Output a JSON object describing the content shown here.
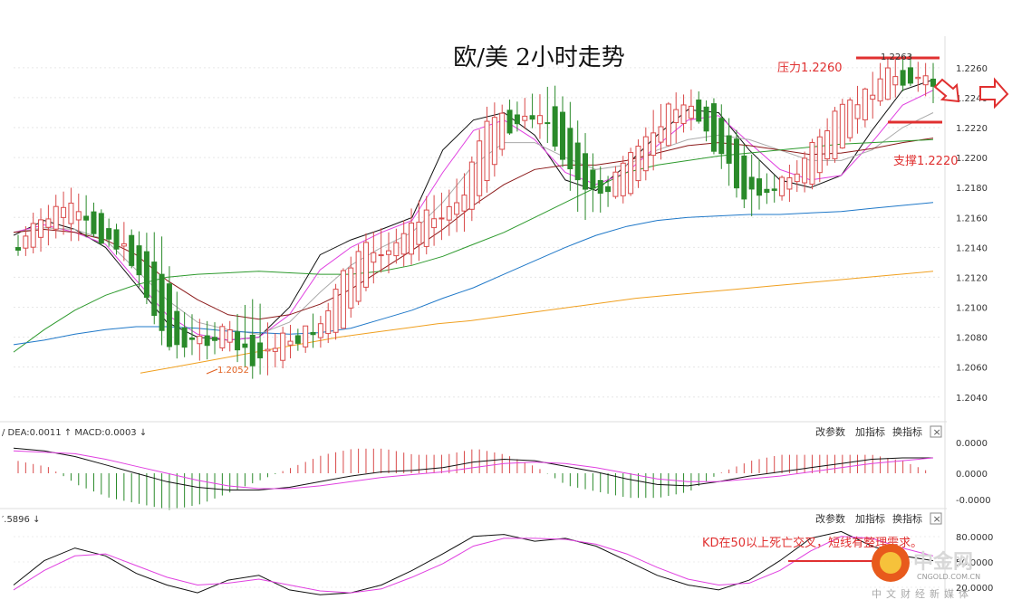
{
  "chart_data": {
    "type": "candlestick",
    "title": "欧/美 2小时走势",
    "main": {
      "y_ticks": [
        1.226,
        1.224,
        1.222,
        1.22,
        1.218,
        1.216,
        1.214,
        1.212,
        1.21,
        1.208,
        1.206,
        1.204
      ],
      "ylim": [
        1.2032,
        1.2272
      ],
      "candle_count": 122,
      "candles_ohlc_sampled": [
        [
          1.214,
          1.2145,
          1.2135,
          1.2138
        ],
        [
          1.2148,
          1.2165,
          1.2142,
          1.2158
        ],
        [
          1.216,
          1.2175,
          1.215,
          1.2168
        ],
        [
          1.2165,
          1.2172,
          1.215,
          1.2153
        ],
        [
          1.215,
          1.2155,
          1.214,
          1.2145
        ],
        [
          1.2142,
          1.2148,
          1.2125,
          1.213
        ],
        [
          1.2128,
          1.215,
          1.208,
          1.2085
        ],
        [
          1.2088,
          1.2095,
          1.2068,
          1.2072
        ],
        [
          1.2075,
          1.2085,
          1.207,
          1.208
        ],
        [
          1.208,
          1.2088,
          1.2075,
          1.2082
        ],
        [
          1.2082,
          1.2105,
          1.2058,
          1.206
        ],
        [
          1.2065,
          1.208,
          1.206,
          1.2078
        ],
        [
          1.2078,
          1.2085,
          1.2072,
          1.208
        ],
        [
          1.208,
          1.2095,
          1.2075,
          1.209
        ],
        [
          1.2092,
          1.213,
          1.209,
          1.2125
        ],
        [
          1.2125,
          1.2148,
          1.212,
          1.214
        ],
        [
          1.214,
          1.215,
          1.213,
          1.2135
        ],
        [
          1.2135,
          1.2168,
          1.2132,
          1.2162
        ],
        [
          1.216,
          1.217,
          1.215,
          1.2158
        ],
        [
          1.2158,
          1.2185,
          1.2155,
          1.218
        ],
        [
          1.2182,
          1.223,
          1.218,
          1.2228
        ],
        [
          1.2228,
          1.2235,
          1.2218,
          1.2222
        ],
        [
          1.2222,
          1.224,
          1.222,
          1.2232
        ],
        [
          1.223,
          1.2245,
          1.2205,
          1.221
        ],
        [
          1.2212,
          1.222,
          1.216,
          1.2175
        ],
        [
          1.2175,
          1.2185,
          1.2168,
          1.218
        ],
        [
          1.218,
          1.22,
          1.2178,
          1.2195
        ],
        [
          1.2195,
          1.2225,
          1.2192,
          1.222
        ],
        [
          1.222,
          1.224,
          1.2215,
          1.2235
        ],
        [
          1.2235,
          1.224,
          1.2225,
          1.2228
        ],
        [
          1.2228,
          1.2232,
          1.2195,
          1.22
        ],
        [
          1.2198,
          1.2205,
          1.2165,
          1.2172
        ],
        [
          1.2172,
          1.2185,
          1.217,
          1.2182
        ],
        [
          1.2182,
          1.219,
          1.2176,
          1.2185
        ],
        [
          1.2185,
          1.2215,
          1.2183,
          1.2212
        ],
        [
          1.221,
          1.2232,
          1.2208,
          1.2228
        ],
        [
          1.2228,
          1.2245,
          1.2225,
          1.224
        ],
        [
          1.224,
          1.2262,
          1.2238,
          1.2258
        ],
        [
          1.2258,
          1.2265,
          1.2248,
          1.2252
        ],
        [
          1.2252,
          1.226,
          1.2242,
          1.2248
        ]
      ],
      "moving_averages": {
        "black": [
          1.2148,
          1.2158,
          1.2152,
          1.214,
          1.2115,
          1.209,
          1.208,
          1.2078,
          1.208,
          1.21,
          1.2135,
          1.2145,
          1.2152,
          1.216,
          1.2205,
          1.2225,
          1.223,
          1.2215,
          1.2185,
          1.2178,
          1.2195,
          1.2215,
          1.2232,
          1.223,
          1.2205,
          1.2185,
          1.218,
          1.2188,
          1.2218,
          1.2245,
          1.2252
        ],
        "magenta": [
          1.215,
          1.2155,
          1.215,
          1.2142,
          1.2118,
          1.2095,
          1.2082,
          1.2078,
          1.208,
          1.2095,
          1.2125,
          1.214,
          1.215,
          1.2158,
          1.219,
          1.2218,
          1.2225,
          1.2212,
          1.219,
          1.2182,
          1.219,
          1.2208,
          1.2225,
          1.2228,
          1.221,
          1.2192,
          1.2185,
          1.2188,
          1.221,
          1.2235,
          1.2245
        ],
        "grey": [
          1.215,
          1.2153,
          1.2152,
          1.2145,
          1.2125,
          1.2105,
          1.209,
          1.2085,
          1.2082,
          1.209,
          1.211,
          1.2128,
          1.214,
          1.215,
          1.217,
          1.2195,
          1.221,
          1.221,
          1.22,
          1.2192,
          1.2195,
          1.2205,
          1.2212,
          1.2215,
          1.2212,
          1.2205,
          1.2198,
          1.2198,
          1.2205,
          1.222,
          1.223
        ],
        "brown": [
          1.215,
          1.2152,
          1.215,
          1.2145,
          1.2135,
          1.2118,
          1.2105,
          1.2095,
          1.2092,
          1.2095,
          1.2102,
          1.2112,
          1.2125,
          1.2138,
          1.2152,
          1.2168,
          1.2182,
          1.2192,
          1.2195,
          1.2195,
          1.2198,
          1.2203,
          1.2208,
          1.221,
          1.2208,
          1.2205,
          1.2202,
          1.2203,
          1.2206,
          1.221,
          1.2213
        ],
        "green": [
          1.207,
          1.2085,
          1.2098,
          1.2108,
          1.2115,
          1.212,
          1.2122,
          1.2123,
          1.2124,
          1.2123,
          1.2122,
          1.2122,
          1.2124,
          1.2128,
          1.2134,
          1.2142,
          1.215,
          1.216,
          1.217,
          1.218,
          1.219,
          1.2195,
          1.2198,
          1.2201,
          1.2203,
          1.2205,
          1.2207,
          1.2209,
          1.221,
          1.2211,
          1.2212
        ],
        "blue": [
          1.2075,
          1.2078,
          1.2082,
          1.2085,
          1.2087,
          1.2087,
          1.2086,
          1.2084,
          1.2083,
          1.2082,
          1.2083,
          1.2086,
          1.2092,
          1.2098,
          1.2106,
          1.2113,
          1.2122,
          1.2131,
          1.214,
          1.2148,
          1.2154,
          1.2158,
          1.216,
          1.2161,
          1.2162,
          1.2162,
          1.2163,
          1.2164,
          1.2166,
          1.2168,
          1.217
        ],
        "orange": [
          1.2056,
          1.206,
          1.2064,
          1.2068,
          1.2072,
          1.2076,
          1.208,
          1.2083,
          1.2086,
          1.2089,
          1.2091,
          1.2094,
          1.2097,
          1.21,
          1.2103,
          1.2106,
          1.2108,
          1.211,
          1.2112,
          1.2114,
          1.2116,
          1.2118,
          1.212,
          1.2122,
          1.2124
        ]
      },
      "annotations": {
        "resistance_label": "压力1.2260",
        "resistance_value": 1.226,
        "support_label": "支撑1.2220",
        "support_value": 1.222,
        "low_label": "1.2052",
        "low_value": 1.2052,
        "peak_label": "1.2263"
      }
    },
    "macd": {
      "header": "/ DEA:0.0011 ↑ MACD:0.0003 ↓",
      "y_ticks": [
        "0.0000",
        "0.0000",
        "-0.0000"
      ],
      "dif": [
        0.0018,
        0.0016,
        0.0012,
        0.0006,
        0.0,
        -0.0006,
        -0.001,
        -0.0012,
        -0.0012,
        -0.001,
        -0.0006,
        -0.0002,
        0.0001,
        0.0002,
        0.0004,
        0.0008,
        0.001,
        0.0009,
        0.0005,
        0.0001,
        -0.0004,
        -0.0008,
        -0.0009,
        -0.0006,
        -0.0002,
        0.0001,
        0.0004,
        0.0007,
        0.001,
        0.0011,
        0.0011
      ],
      "dea": [
        0.0016,
        0.0015,
        0.0014,
        0.001,
        0.0005,
        0.0,
        -0.0005,
        -0.0009,
        -0.0011,
        -0.0011,
        -0.0009,
        -0.0006,
        -0.0003,
        -0.0001,
        0.0001,
        0.0004,
        0.0007,
        0.0008,
        0.0007,
        0.0004,
        0.0,
        -0.0004,
        -0.0006,
        -0.0006,
        -0.0004,
        -0.0002,
        0.0001,
        0.0004,
        0.0007,
        0.0009,
        0.0011
      ],
      "buttons": [
        "改参数",
        "加指标",
        "换指标"
      ]
    },
    "kd": {
      "header": "′.5896 ↓",
      "y_ticks": [
        "80.0000",
        "50.0000",
        "20.0000"
      ],
      "k": [
        30,
        55,
        68,
        60,
        42,
        30,
        22,
        35,
        40,
        25,
        20,
        22,
        30,
        45,
        62,
        80,
        82,
        75,
        78,
        70,
        55,
        40,
        30,
        25,
        35,
        55,
        78,
        85,
        70,
        60,
        55
      ],
      "d": [
        25,
        45,
        60,
        62,
        50,
        38,
        30,
        32,
        36,
        30,
        24,
        22,
        26,
        38,
        52,
        70,
        78,
        78,
        77,
        72,
        62,
        48,
        36,
        30,
        32,
        45,
        65,
        80,
        78,
        68,
        60
      ],
      "annotation": "KD在50以上死亡交叉，短线有整理需求。",
      "buttons": [
        "改参数",
        "加指标",
        "换指标"
      ]
    },
    "watermark": {
      "brand": "中金网",
      "site": "CNGOLD.COM.CN",
      "slogan": "中文财经新媒体"
    }
  }
}
